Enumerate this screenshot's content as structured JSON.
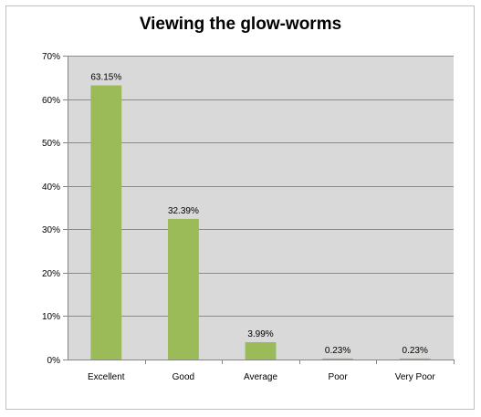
{
  "chart_data": {
    "type": "bar",
    "title": "Viewing the glow-worms",
    "xlabel": "",
    "ylabel": "",
    "categories": [
      "Excellent",
      "Good",
      "Average",
      "Poor",
      "Very Poor"
    ],
    "values": [
      63.15,
      32.39,
      3.99,
      0.23,
      0.23
    ],
    "data_labels": [
      "63.15%",
      "32.39%",
      "3.99%",
      "0.23%",
      "0.23%"
    ],
    "ylim": [
      0,
      70
    ],
    "y_ticks": [
      0,
      10,
      20,
      30,
      40,
      50,
      60,
      70
    ],
    "y_tick_labels": [
      "0%",
      "10%",
      "20%",
      "30%",
      "40%",
      "50%",
      "60%",
      "70%"
    ],
    "grid": true,
    "legend": "none",
    "colors": {
      "bar": "#9BBB59",
      "plot_background": "#D9D9D9",
      "gridline": "#8C8C8C",
      "axis": "#868686"
    }
  }
}
